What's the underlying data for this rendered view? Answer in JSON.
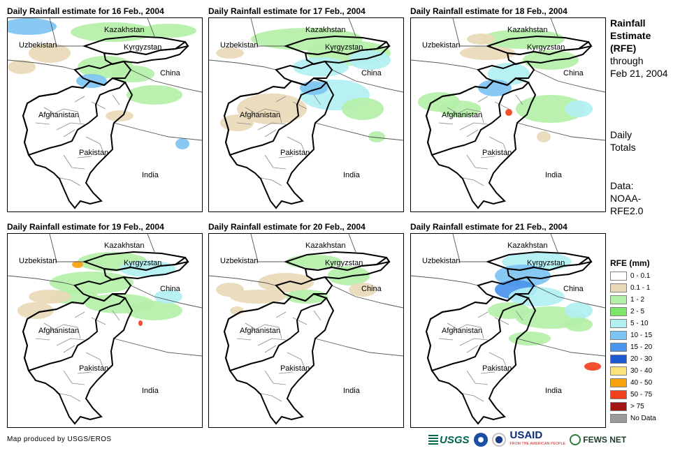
{
  "panels": [
    {
      "id": "p1",
      "title": "Daily Rainfall estimate for 16 Feb., 2004"
    },
    {
      "id": "p2",
      "title": "Daily Rainfall estimate for 17 Feb., 2004"
    },
    {
      "id": "p3",
      "title": "Daily Rainfall estimate for 18 Feb., 2004"
    },
    {
      "id": "p4",
      "title": "Daily Rainfall estimate for 19 Feb., 2004"
    },
    {
      "id": "p5",
      "title": "Daily Rainfall estimate for 20 Feb., 2004"
    },
    {
      "id": "p6",
      "title": "Daily Rainfall estimate for 21 Feb., 2004"
    }
  ],
  "countries": {
    "kazakhstan": "Kazakhstan",
    "uzbekistan": "Uzbekistan",
    "kyrgyzstan": "Kyrgyzstan",
    "china": "China",
    "afghanistan": "Afghanistan",
    "pakistan": "Pakistan",
    "india": "India"
  },
  "sidebar": {
    "heading1": "Rainfall",
    "heading2": "Estimate",
    "heading3": "(RFE)",
    "through": "through",
    "date": "Feb 21, 2004",
    "daily": "Daily",
    "totals": "Totals",
    "data_label": "Data:",
    "data_src1": "NOAA-",
    "data_src2": "RFE2.0"
  },
  "legend": {
    "title": "RFE (mm)",
    "items": [
      {
        "label": "0 - 0.1",
        "color": "#ffffff"
      },
      {
        "label": "0.1 - 1",
        "color": "#ead9b9"
      },
      {
        "label": "1 - 2",
        "color": "#b4f0a8"
      },
      {
        "label": "2 - 5",
        "color": "#7de66b"
      },
      {
        "label": "5 - 10",
        "color": "#b2f0f2"
      },
      {
        "label": "10 - 15",
        "color": "#7ec4f2"
      },
      {
        "label": "15 - 20",
        "color": "#4a94ec"
      },
      {
        "label": "20 - 30",
        "color": "#1f5ad4"
      },
      {
        "label": "30 - 40",
        "color": "#fbe27a"
      },
      {
        "label": "40 - 50",
        "color": "#f7a30c"
      },
      {
        "label": "50 - 75",
        "color": "#f0401c"
      },
      {
        "label": "> 75",
        "color": "#a11515"
      },
      {
        "label": "No Data",
        "color": "#9a9a9a"
      }
    ]
  },
  "credit": "Map produced by USGS/EROS",
  "logos": {
    "usgs": "USGS",
    "usaid": "USAID",
    "usaid_tag": "FROM THE AMERICAN PEOPLE",
    "fews": "FEWS NET"
  }
}
